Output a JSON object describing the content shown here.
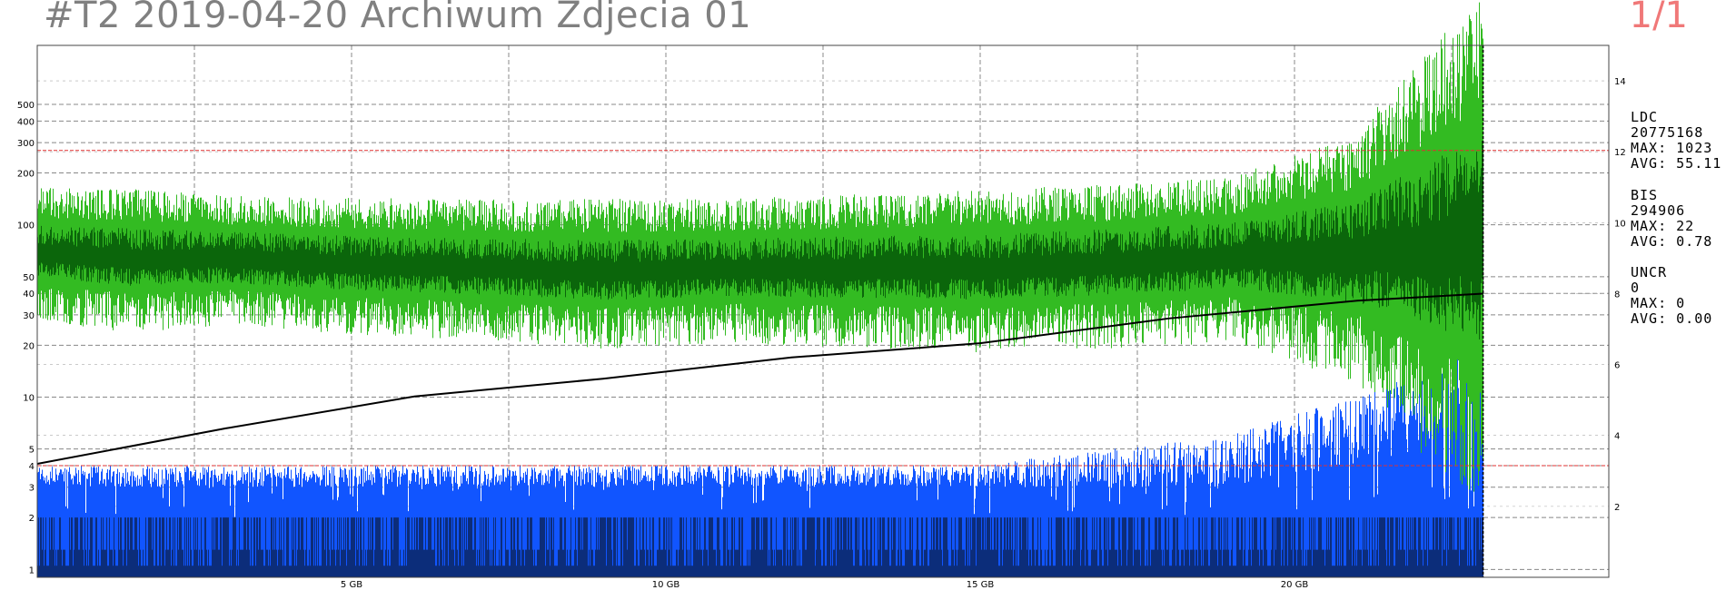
{
  "header": {
    "title": "#T2 2019-04-20 Archiwum Zdjecia 01",
    "page": "1/1"
  },
  "stats": [
    {
      "name": "LDC",
      "total": "20775168",
      "max": "MAX: 1023",
      "avg": "AVG: 55.11"
    },
    {
      "name": "BIS",
      "total": "294906",
      "max": "MAX: 22",
      "avg": "AVG: 0.78"
    },
    {
      "name": "UNCR",
      "total": "0",
      "max": "MAX: 0",
      "avg": "AVG: 0.00"
    }
  ],
  "colors": {
    "ldc_band": "#33bb22",
    "ldc_core": "#0b660b",
    "bis_fill": "#1155ff",
    "bis_dark": "#0c2d7a",
    "speed_line": "#000000",
    "threshold_line": "#e03030",
    "grid": "#888888",
    "title": "#808080",
    "page": "#f07878"
  },
  "chart_data": {
    "type": "line",
    "x_unit": "GB",
    "x_range": [
      0,
      25
    ],
    "x_end_data": 23,
    "x_ticks": [
      5,
      10,
      15,
      20
    ],
    "x_tick_labels": [
      "5 GB",
      "10 GB",
      "15 GB",
      "20 GB"
    ],
    "y_left_scale": "log",
    "y_left_range": [
      0.9,
      1100
    ],
    "y_left_ticks": [
      1,
      2,
      3,
      4,
      5,
      10,
      20,
      30,
      40,
      50,
      100,
      200,
      300,
      400,
      500
    ],
    "y_right_range": [
      0,
      15
    ],
    "y_right_ticks": [
      2,
      4,
      6,
      8,
      10,
      12,
      14
    ],
    "threshold_lines": [
      270,
      4
    ],
    "grid": true,
    "series": [
      {
        "name": "LDC",
        "kind": "band",
        "points": [
          [
            0,
            45,
            110
          ],
          [
            1.5,
            40,
            105
          ],
          [
            3,
            42,
            100
          ],
          [
            5,
            38,
            95
          ],
          [
            7,
            36,
            92
          ],
          [
            9,
            33,
            90
          ],
          [
            11,
            35,
            92
          ],
          [
            13,
            34,
            95
          ],
          [
            15,
            33,
            98
          ],
          [
            17,
            35,
            105
          ],
          [
            19,
            38,
            115
          ],
          [
            21,
            30,
            160
          ],
          [
            22,
            20,
            280
          ],
          [
            23,
            15,
            450
          ]
        ]
      },
      {
        "name": "BIS",
        "kind": "bars",
        "points": [
          [
            0,
            3,
            4
          ],
          [
            5,
            3,
            4
          ],
          [
            10,
            3,
            4
          ],
          [
            15,
            3,
            4
          ],
          [
            19,
            3,
            6
          ],
          [
            21,
            4,
            10
          ],
          [
            22,
            5,
            14
          ],
          [
            23,
            10,
            20
          ]
        ]
      },
      {
        "name": "speed",
        "axis": "right",
        "points": [
          [
            0,
            3.2
          ],
          [
            3,
            4.2
          ],
          [
            6,
            5.1
          ],
          [
            9,
            5.6
          ],
          [
            12,
            6.2
          ],
          [
            15,
            6.6
          ],
          [
            18,
            7.3
          ],
          [
            21,
            7.8
          ],
          [
            23,
            8.0
          ]
        ]
      }
    ]
  }
}
